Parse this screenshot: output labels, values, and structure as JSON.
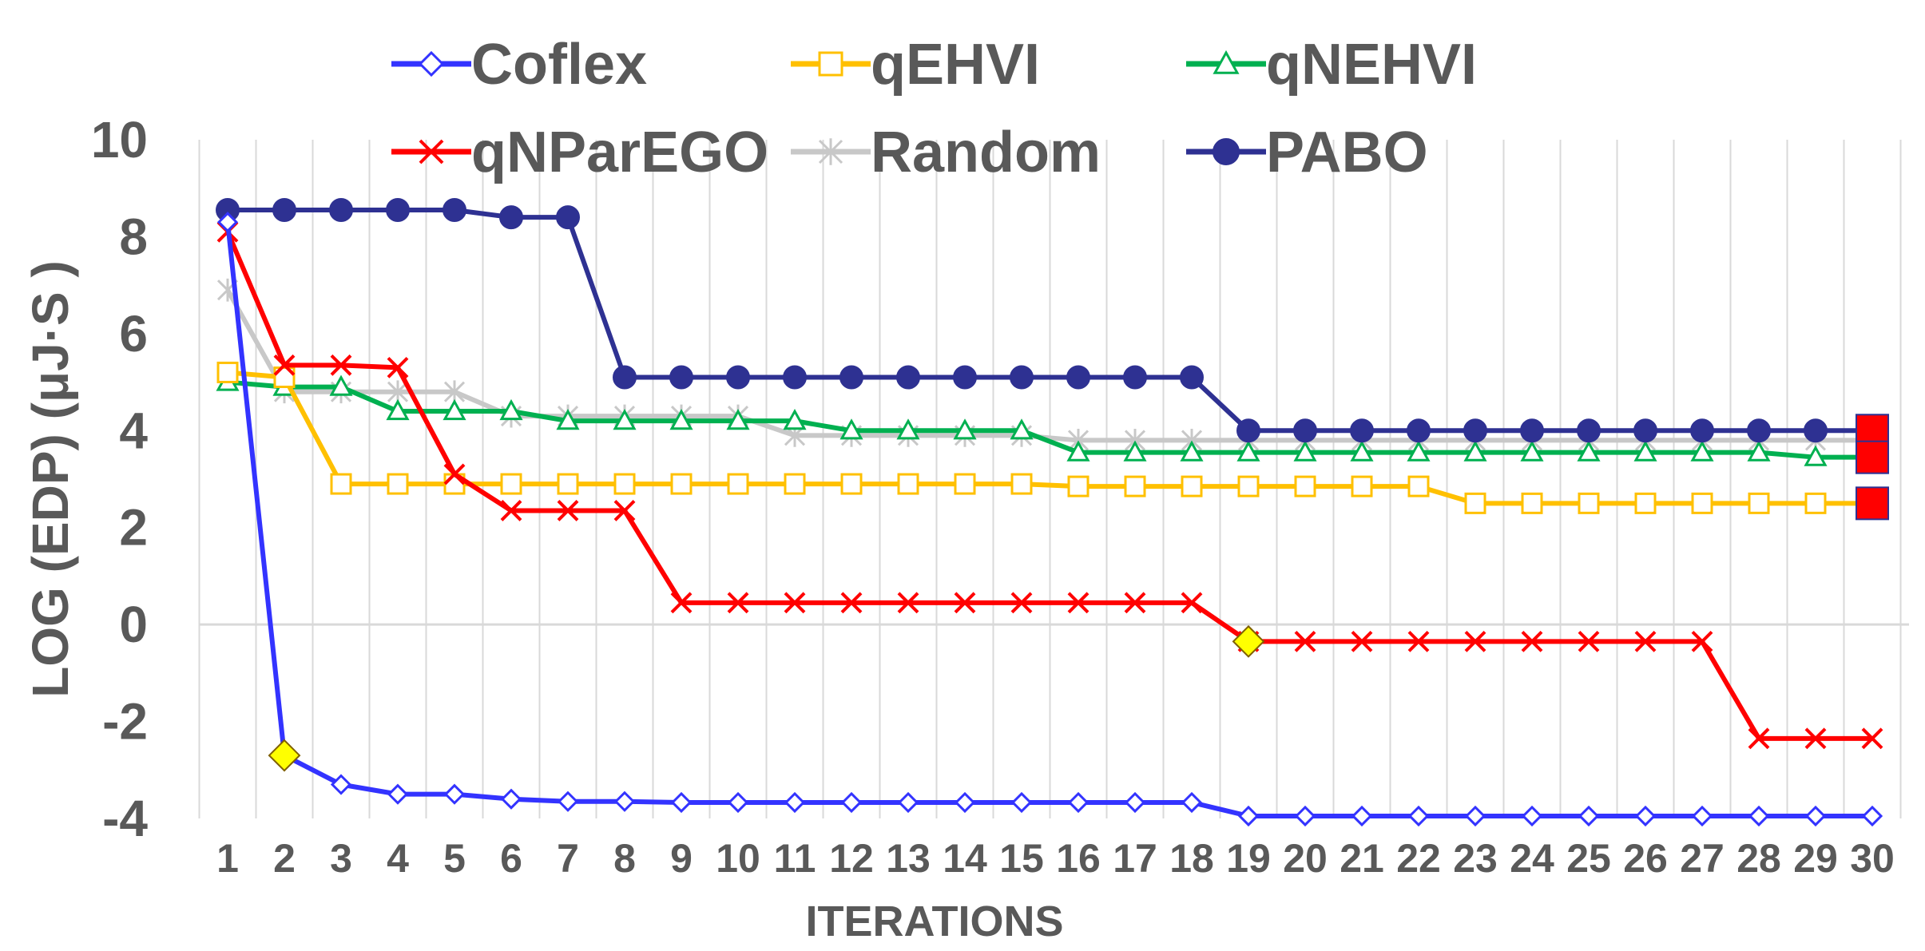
{
  "chart_data": {
    "type": "line",
    "title": "",
    "xlabel": "ITERATIONS",
    "ylabel": "LOG (EDP) (μJ·S )",
    "ylim": [
      -4,
      10
    ],
    "yticks": [
      -4,
      -2,
      0,
      2,
      4,
      6,
      8,
      10
    ],
    "grid": true,
    "legend_position": "top",
    "x": [
      1,
      2,
      3,
      4,
      5,
      6,
      7,
      8,
      9,
      10,
      11,
      12,
      13,
      14,
      15,
      16,
      17,
      18,
      19,
      20,
      21,
      22,
      23,
      24,
      25,
      26,
      27,
      28,
      29,
      30
    ],
    "series": [
      {
        "name": "Coflex",
        "color": "#3333FF",
        "marker": "diamond-open",
        "values": [
          8.3,
          -2.7,
          -3.3,
          -3.5,
          -3.5,
          -3.6,
          -3.65,
          -3.65,
          -3.67,
          -3.67,
          -3.67,
          -3.67,
          -3.67,
          -3.67,
          -3.67,
          -3.67,
          -3.67,
          -3.67,
          -3.95,
          -3.95,
          -3.95,
          -3.95,
          -3.95,
          -3.95,
          -3.95,
          -3.95,
          -3.95,
          -3.95,
          -3.95,
          -3.95
        ]
      },
      {
        "name": "qEHVI",
        "color": "#FFC000",
        "marker": "square-open",
        "values": [
          5.2,
          5.1,
          2.9,
          2.9,
          2.9,
          2.9,
          2.9,
          2.9,
          2.9,
          2.9,
          2.9,
          2.9,
          2.9,
          2.9,
          2.9,
          2.85,
          2.85,
          2.85,
          2.85,
          2.85,
          2.85,
          2.85,
          2.5,
          2.5,
          2.5,
          2.5,
          2.5,
          2.5,
          2.5,
          2.5
        ]
      },
      {
        "name": "qNEHVI",
        "color": "#00B050",
        "marker": "triangle-open",
        "values": [
          5.0,
          4.9,
          4.9,
          4.4,
          4.4,
          4.4,
          4.2,
          4.2,
          4.2,
          4.2,
          4.2,
          4.0,
          4.0,
          4.0,
          4.0,
          3.55,
          3.55,
          3.55,
          3.55,
          3.55,
          3.55,
          3.55,
          3.55,
          3.55,
          3.55,
          3.55,
          3.55,
          3.55,
          3.45,
          3.45
        ]
      },
      {
        "name": "qNParEGO",
        "color": "#FF0000",
        "marker": "x",
        "values": [
          8.1,
          5.35,
          5.35,
          5.3,
          3.1,
          2.35,
          2.35,
          2.35,
          0.45,
          0.45,
          0.45,
          0.45,
          0.45,
          0.45,
          0.45,
          0.45,
          0.45,
          0.45,
          -0.35,
          -0.35,
          -0.35,
          -0.35,
          -0.35,
          -0.35,
          -0.35,
          -0.35,
          -0.35,
          -2.35,
          -2.35,
          -2.35
        ]
      },
      {
        "name": "Random",
        "color": "#C8C8C8",
        "marker": "star",
        "values": [
          6.9,
          4.8,
          4.8,
          4.8,
          4.8,
          4.3,
          4.3,
          4.3,
          4.3,
          4.3,
          3.9,
          3.9,
          3.9,
          3.9,
          3.9,
          3.8,
          3.8,
          3.8,
          3.8,
          3.8,
          3.8,
          3.8,
          3.8,
          3.8,
          3.8,
          3.8,
          3.8,
          3.8,
          3.8,
          3.8
        ]
      },
      {
        "name": "PABO",
        "color": "#2E3192",
        "marker": "circle-filled",
        "values": [
          8.55,
          8.55,
          8.55,
          8.55,
          8.55,
          8.4,
          8.4,
          5.1,
          5.1,
          5.1,
          5.1,
          5.1,
          5.1,
          5.1,
          5.1,
          5.1,
          5.1,
          5.1,
          4.0,
          4.0,
          4.0,
          4.0,
          4.0,
          4.0,
          4.0,
          4.0,
          4.0,
          4.0,
          4.0,
          4.0
        ]
      }
    ],
    "highlights": [
      {
        "series": "Coflex",
        "x": 2,
        "y": -2.7,
        "marker": "diamond",
        "color": "#FFFF00"
      },
      {
        "series": "qNParEGO",
        "x": 19,
        "y": -0.35,
        "marker": "diamond",
        "color": "#FFFF00"
      },
      {
        "series": "PABO",
        "x": 30,
        "y": 4.0,
        "marker": "square",
        "color": "#FF0000"
      },
      {
        "series": "qEHVI",
        "x": 30,
        "y": 2.5,
        "marker": "square",
        "color": "#FF0000"
      },
      {
        "series": "qNEHVI",
        "x": 30,
        "y": 3.45,
        "marker": "square",
        "color": "#FF0000"
      }
    ]
  }
}
